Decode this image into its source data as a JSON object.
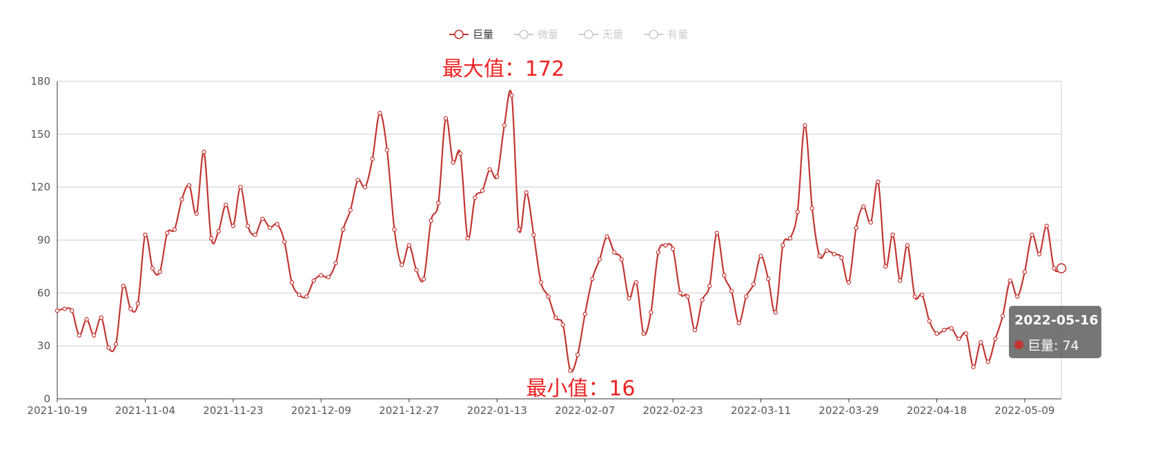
{
  "chart_data": {
    "type": "line",
    "smooth": true,
    "legend": {
      "placement": "top-center",
      "items": [
        {
          "name": "巨量",
          "active": true
        },
        {
          "name": "微量",
          "active": false
        },
        {
          "name": "无量",
          "active": false
        },
        {
          "name": "有量",
          "active": false
        }
      ]
    },
    "colors": {
      "series": "#c23531",
      "inactive": "#cccccc",
      "annotation": "#ee2222",
      "grid": "#cccccc",
      "axis": "#555555"
    },
    "grid": true,
    "ylim": [
      0,
      180
    ],
    "yticks": [
      "0",
      "30",
      "60",
      "90",
      "120",
      "150",
      "180"
    ],
    "xtick_labels": [
      "2021-10-19",
      "2021-11-04",
      "2021-11-23",
      "2021-12-09",
      "2021-12-27",
      "2022-01-13",
      "2022-02-07",
      "2022-02-23",
      "2022-03-11",
      "2022-03-29",
      "2022-04-18",
      "2022-05-09"
    ],
    "xtick_step": 12,
    "series": [
      {
        "name": "巨量",
        "values": [
          50,
          51,
          50,
          36,
          45,
          36,
          46,
          29,
          31,
          64,
          51,
          54,
          93,
          74,
          72,
          94,
          96,
          113,
          121,
          105,
          140,
          91,
          95,
          110,
          98,
          120,
          98,
          93,
          102,
          97,
          99,
          89,
          66,
          59,
          58,
          67,
          70,
          69,
          77,
          96,
          107,
          124,
          120,
          136,
          162,
          141,
          96,
          76,
          87,
          73,
          68,
          101,
          111,
          159,
          134,
          139,
          91,
          114,
          118,
          130,
          126,
          155,
          172,
          96,
          117,
          93,
          66,
          58,
          46,
          42,
          16,
          25,
          48,
          68,
          79,
          92,
          83,
          79,
          57,
          66,
          37,
          49,
          83,
          87,
          85,
          60,
          58,
          39,
          56,
          64,
          94,
          70,
          61,
          43,
          58,
          65,
          81,
          68,
          49,
          87,
          91,
          106,
          155,
          108,
          81,
          84,
          82,
          80,
          66,
          97,
          109,
          100,
          123,
          75,
          93,
          67,
          87,
          58,
          59,
          44,
          37,
          39,
          40,
          34,
          37,
          18,
          32,
          21,
          34,
          47,
          67,
          58,
          72,
          93,
          82,
          98,
          74,
          74
        ]
      }
    ],
    "annotations": {
      "max_label": "最大值：172",
      "min_label": "最小值：16"
    },
    "tooltip": {
      "date": "2022-05-16",
      "series_name": "巨量",
      "value_text": "巨量: 74"
    }
  }
}
